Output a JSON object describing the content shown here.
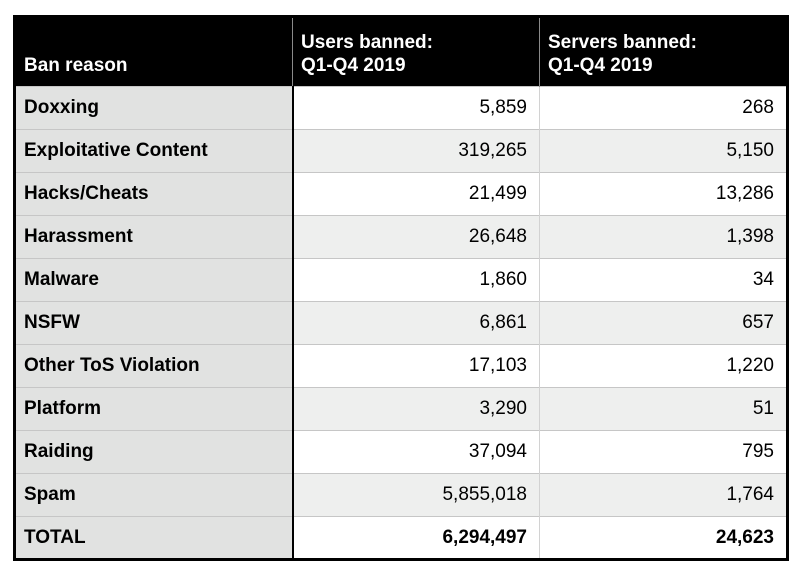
{
  "style_colors": {
    "header_bg": "#000000",
    "header_text": "#ffffff",
    "row_label_bg": "#e1e2e1",
    "row_bg_white": "#ffffff",
    "row_bg_alt": "#eeefee",
    "grid_line": "#c6c6c6",
    "outer_border": "#000000"
  },
  "chart_data": {
    "type": "table",
    "columns": [
      "Ban reason",
      "Users banned: Q1-Q4 2019",
      "Servers banned: Q1-Q4 2019"
    ],
    "header_display": {
      "col1": "Ban reason",
      "col2": "Users banned:\nQ1-Q4 2019",
      "col3": "Servers banned:\nQ1-Q4 2019"
    },
    "rows": [
      {
        "reason": "Doxxing",
        "users_banned": 5859,
        "servers_banned": 268,
        "users_display": "5,859",
        "servers_display": "268"
      },
      {
        "reason": "Exploitative Content",
        "users_banned": 319265,
        "servers_banned": 5150,
        "users_display": "319,265",
        "servers_display": "5,150"
      },
      {
        "reason": "Hacks/Cheats",
        "users_banned": 21499,
        "servers_banned": 13286,
        "users_display": "21,499",
        "servers_display": "13,286"
      },
      {
        "reason": "Harassment",
        "users_banned": 26648,
        "servers_banned": 1398,
        "users_display": "26,648",
        "servers_display": "1,398"
      },
      {
        "reason": "Malware",
        "users_banned": 1860,
        "servers_banned": 34,
        "users_display": "1,860",
        "servers_display": "34"
      },
      {
        "reason": "NSFW",
        "users_banned": 6861,
        "servers_banned": 657,
        "users_display": "6,861",
        "servers_display": "657"
      },
      {
        "reason": "Other ToS Violation",
        "users_banned": 17103,
        "servers_banned": 1220,
        "users_display": "17,103",
        "servers_display": "1,220"
      },
      {
        "reason": "Platform",
        "users_banned": 3290,
        "servers_banned": 51,
        "users_display": "3,290",
        "servers_display": "51"
      },
      {
        "reason": "Raiding",
        "users_banned": 37094,
        "servers_banned": 795,
        "users_display": "37,094",
        "servers_display": "795"
      },
      {
        "reason": "Spam",
        "users_banned": 5855018,
        "servers_banned": 1764,
        "users_display": "5,855,018",
        "servers_display": "1,764"
      }
    ],
    "total_row": {
      "reason": "TOTAL",
      "users_banned": 6294497,
      "servers_banned": 24623,
      "users_display": "6,294,497",
      "servers_display": "24,623"
    }
  }
}
